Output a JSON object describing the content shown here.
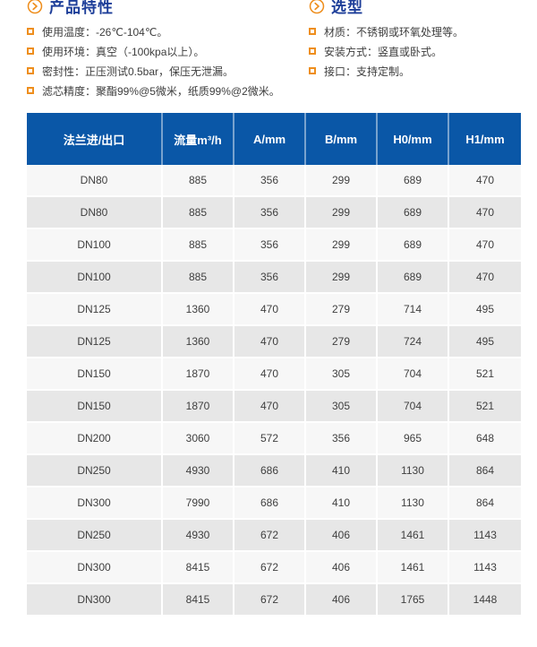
{
  "features": {
    "title": "产品特性",
    "items": [
      "使用温度：-26℃-104℃。",
      "使用环境：真空（-100kpa以上）。",
      "密封性：正压测试0.5bar，保压无泄漏。",
      "滤芯精度：聚酯99%@5微米，纸质99%@2微米。"
    ]
  },
  "selection": {
    "title": "选型",
    "items": [
      "材质：不锈钢或环氧处理等。",
      "安装方式：竖直或卧式。",
      "接口：支持定制。"
    ]
  },
  "table": {
    "headers": [
      "法兰进/出口",
      "流量m³/h",
      "A/mm",
      "B/mm",
      "H0/mm",
      "H1/mm"
    ],
    "rows": [
      [
        "DN80",
        "885",
        "356",
        "299",
        "689",
        "470"
      ],
      [
        "DN80",
        "885",
        "356",
        "299",
        "689",
        "470"
      ],
      [
        "DN100",
        "885",
        "356",
        "299",
        "689",
        "470"
      ],
      [
        "DN100",
        "885",
        "356",
        "299",
        "689",
        "470"
      ],
      [
        "DN125",
        "1360",
        "470",
        "279",
        "714",
        "495"
      ],
      [
        "DN125",
        "1360",
        "470",
        "279",
        "724",
        "495"
      ],
      [
        "DN150",
        "1870",
        "470",
        "305",
        "704",
        "521"
      ],
      [
        "DN150",
        "1870",
        "470",
        "305",
        "704",
        "521"
      ],
      [
        "DN200",
        "3060",
        "572",
        "356",
        "965",
        "648"
      ],
      [
        "DN250",
        "4930",
        "686",
        "410",
        "1130",
        "864"
      ],
      [
        "DN300",
        "7990",
        "686",
        "410",
        "1130",
        "864"
      ],
      [
        "DN250",
        "4930",
        "672",
        "406",
        "1461",
        "1143"
      ],
      [
        "DN300",
        "8415",
        "672",
        "406",
        "1461",
        "1143"
      ],
      [
        "DN300",
        "8415",
        "672",
        "406",
        "1765",
        "1448"
      ]
    ]
  },
  "colors": {
    "header_bg": "#0a57a7",
    "accent_orange": "#ee8e1d",
    "title_blue": "#1d3e99",
    "row_light": "#f7f7f7",
    "row_dark": "#e7e7e7",
    "body_text": "#3d3d3d"
  }
}
